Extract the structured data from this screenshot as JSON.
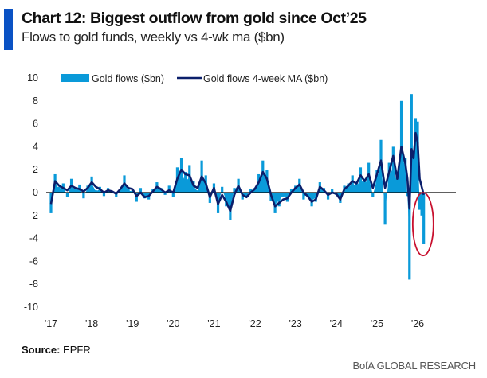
{
  "header": {
    "title": "Chart 12: Biggest outflow from gold since Oct’25",
    "subtitle": "Flows to gold funds, weekly vs 4-wk ma ($bn)"
  },
  "footer": {
    "source_label": "Source:",
    "source_value": "EPFR",
    "brand": "BofA GLOBAL RESEARCH"
  },
  "colors": {
    "accent": "#0a52c4",
    "flows": "#0a9ad9",
    "ma": "#0b1f6b",
    "annotation": "#c8102e",
    "zero_line": "#000000"
  },
  "chart_data": {
    "type": "bar",
    "title": "Chart 12: Biggest outflow from gold since Oct’25",
    "subtitle": "Flows to gold funds, weekly vs 4-wk ma ($bn)",
    "xlabel": "",
    "ylabel": "",
    "ylim": [
      -10,
      10
    ],
    "yticks": [
      10,
      8,
      6,
      4,
      2,
      0,
      -2,
      -4,
      -6,
      -8,
      -10
    ],
    "xlim": [
      2017.0,
      2026.2
    ],
    "xticks": [
      {
        "value": 2017,
        "label": "'17"
      },
      {
        "value": 2018,
        "label": "'18"
      },
      {
        "value": 2019,
        "label": "'19"
      },
      {
        "value": 2020,
        "label": "'20"
      },
      {
        "value": 2021,
        "label": "'21"
      },
      {
        "value": 2022,
        "label": "'22"
      },
      {
        "value": 2023,
        "label": "'23"
      },
      {
        "value": 2024,
        "label": "'24"
      },
      {
        "value": 2025,
        "label": "'25"
      },
      {
        "value": 2026,
        "label": "'26"
      }
    ],
    "grid": false,
    "legend_position": "top-left",
    "annotation": {
      "type": "ellipse",
      "description": "Red circle highlighting latest outflow",
      "x_range": [
        2026.0,
        2026.15
      ],
      "y_range": [
        0,
        -5.5
      ]
    },
    "series": [
      {
        "name": "Gold flows ($bn)",
        "kind": "bar",
        "x": [
          2017.0,
          2017.1,
          2017.2,
          2017.3,
          2017.4,
          2017.5,
          2017.6,
          2017.7,
          2017.8,
          2017.9,
          2018.0,
          2018.1,
          2018.2,
          2018.3,
          2018.4,
          2018.5,
          2018.6,
          2018.7,
          2018.8,
          2018.9,
          2019.0,
          2019.1,
          2019.2,
          2019.3,
          2019.4,
          2019.5,
          2019.6,
          2019.7,
          2019.8,
          2019.9,
          2020.0,
          2020.1,
          2020.2,
          2020.3,
          2020.4,
          2020.5,
          2020.6,
          2020.7,
          2020.8,
          2020.9,
          2021.0,
          2021.1,
          2021.2,
          2021.3,
          2021.4,
          2021.5,
          2021.6,
          2021.7,
          2021.8,
          2021.9,
          2022.0,
          2022.1,
          2022.2,
          2022.3,
          2022.4,
          2022.5,
          2022.6,
          2022.7,
          2022.8,
          2022.9,
          2023.0,
          2023.1,
          2023.2,
          2023.3,
          2023.4,
          2023.5,
          2023.6,
          2023.7,
          2023.8,
          2023.9,
          2024.0,
          2024.1,
          2024.2,
          2024.3,
          2024.4,
          2024.5,
          2024.6,
          2024.7,
          2024.8,
          2024.9,
          2025.0,
          2025.1,
          2025.2,
          2025.3,
          2025.4,
          2025.5,
          2025.6,
          2025.7,
          2025.75,
          2025.8,
          2025.85,
          2025.9,
          2025.95,
          2026.0,
          2026.05,
          2026.1,
          2026.15
        ],
        "values": [
          -1.8,
          1.6,
          0.5,
          0.8,
          -0.4,
          1.2,
          0.3,
          0.7,
          -0.5,
          0.6,
          1.4,
          0.2,
          0.5,
          -0.3,
          0.4,
          0.1,
          -0.4,
          0.2,
          1.5,
          0.3,
          0.2,
          -0.8,
          0.4,
          -0.5,
          -0.6,
          0.3,
          0.9,
          0.4,
          -0.2,
          0.6,
          -0.4,
          2.2,
          3.0,
          1.8,
          2.4,
          1.0,
          0.2,
          2.8,
          1.5,
          -0.9,
          0.8,
          -1.8,
          0.5,
          -1.2,
          -2.4,
          0.4,
          1.2,
          -0.6,
          -0.3,
          0.3,
          0.4,
          1.6,
          2.8,
          2.0,
          -0.7,
          -1.8,
          -1.2,
          -0.4,
          -0.8,
          0.3,
          0.6,
          1.2,
          -0.6,
          -0.4,
          -1.2,
          -0.8,
          0.9,
          0.4,
          -0.6,
          0.3,
          -0.2,
          -0.9,
          0.6,
          0.8,
          1.5,
          0.9,
          2.2,
          1.2,
          2.6,
          -0.4,
          2.0,
          4.6,
          -2.8,
          2.6,
          4.0,
          1.5,
          8.0,
          3.0,
          -0.3,
          -7.6,
          8.6,
          3.5,
          6.5,
          6.2,
          -1.5,
          -2.0,
          -4.5
        ]
      },
      {
        "name": "Gold flows 4-week MA ($bn)",
        "kind": "line",
        "x": [
          2017.0,
          2017.1,
          2017.2,
          2017.3,
          2017.4,
          2017.5,
          2017.6,
          2017.7,
          2017.8,
          2017.9,
          2018.0,
          2018.1,
          2018.2,
          2018.3,
          2018.4,
          2018.5,
          2018.6,
          2018.7,
          2018.8,
          2018.9,
          2019.0,
          2019.1,
          2019.2,
          2019.3,
          2019.4,
          2019.5,
          2019.6,
          2019.7,
          2019.8,
          2019.9,
          2020.0,
          2020.1,
          2020.2,
          2020.3,
          2020.4,
          2020.5,
          2020.6,
          2020.7,
          2020.8,
          2020.9,
          2021.0,
          2021.1,
          2021.2,
          2021.3,
          2021.4,
          2021.5,
          2021.6,
          2021.7,
          2021.8,
          2021.9,
          2022.0,
          2022.1,
          2022.2,
          2022.3,
          2022.4,
          2022.5,
          2022.6,
          2022.7,
          2022.8,
          2022.9,
          2023.0,
          2023.1,
          2023.2,
          2023.3,
          2023.4,
          2023.5,
          2023.6,
          2023.7,
          2023.8,
          2023.9,
          2024.0,
          2024.1,
          2024.2,
          2024.3,
          2024.4,
          2024.5,
          2024.6,
          2024.7,
          2024.8,
          2024.9,
          2025.0,
          2025.1,
          2025.2,
          2025.3,
          2025.4,
          2025.5,
          2025.6,
          2025.7,
          2025.75,
          2025.8,
          2025.85,
          2025.9,
          2025.95,
          2026.0,
          2026.05,
          2026.1,
          2026.15
        ],
        "values": [
          -1.0,
          1.0,
          0.6,
          0.4,
          0.2,
          0.6,
          0.4,
          0.3,
          0.1,
          0.4,
          0.9,
          0.5,
          0.3,
          0.0,
          0.2,
          0.1,
          -0.1,
          0.3,
          0.8,
          0.4,
          0.3,
          -0.3,
          0.0,
          -0.4,
          -0.3,
          0.1,
          0.5,
          0.3,
          0.0,
          0.2,
          0.0,
          1.2,
          2.0,
          1.6,
          1.5,
          0.6,
          0.4,
          1.4,
          0.8,
          -0.4,
          0.4,
          -1.0,
          -0.2,
          -0.8,
          -1.6,
          -0.2,
          0.6,
          -0.2,
          -0.4,
          0.0,
          0.3,
          0.9,
          1.8,
          1.2,
          -0.2,
          -1.2,
          -0.9,
          -0.6,
          -0.5,
          0.0,
          0.4,
          0.7,
          0.0,
          -0.3,
          -0.8,
          -0.6,
          0.5,
          0.2,
          -0.2,
          0.0,
          -0.1,
          -0.6,
          0.3,
          0.6,
          1.0,
          0.8,
          1.5,
          1.0,
          1.6,
          0.4,
          1.6,
          2.8,
          0.4,
          1.8,
          3.2,
          1.2,
          4.0,
          2.5,
          1.2,
          -1.4,
          3.8,
          3.0,
          5.2,
          4.4,
          1.2,
          0.5,
          -0.2
        ]
      }
    ]
  }
}
